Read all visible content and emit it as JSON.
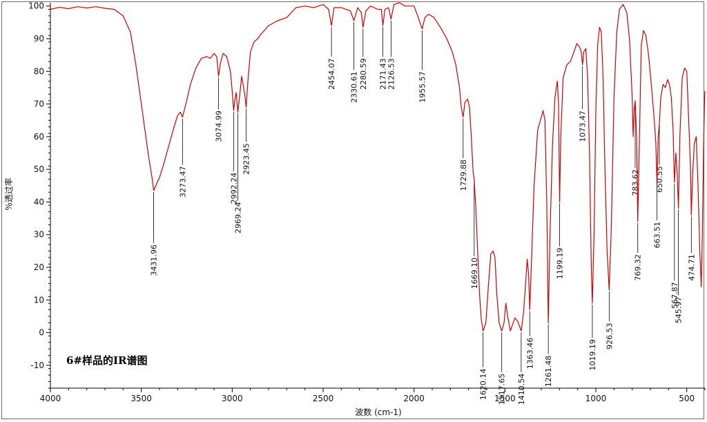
{
  "chart_data": {
    "type": "line",
    "title": "6#样品的IR谱图",
    "xlabel": "波数 (cm-1)",
    "ylabel": "%透过率",
    "xlim": [
      4000,
      400
    ],
    "ylim": [
      -17,
      101
    ],
    "x_ticks": [
      4000,
      3500,
      3000,
      2500,
      2000,
      1500,
      1000,
      500
    ],
    "y_ticks": [
      -10,
      0,
      10,
      20,
      30,
      40,
      50,
      60,
      70,
      80,
      90,
      100
    ],
    "grid": false,
    "line_color": "#cc0000",
    "series": [
      {
        "points": [
          [
            4000,
            99.0
          ],
          [
            3950,
            99.6
          ],
          [
            3900,
            99.2
          ],
          [
            3850,
            99.8
          ],
          [
            3800,
            99.4
          ],
          [
            3750,
            99.8
          ],
          [
            3700,
            99.3
          ],
          [
            3650,
            99.0
          ],
          [
            3600,
            97.0
          ],
          [
            3560,
            92.0
          ],
          [
            3530,
            82.0
          ],
          [
            3500,
            70.0
          ],
          [
            3480,
            62.0
          ],
          [
            3460,
            54.0
          ],
          [
            3440,
            47.0
          ],
          [
            3431.96,
            43.5
          ],
          [
            3420,
            45.0
          ],
          [
            3400,
            47.5
          ],
          [
            3380,
            51.0
          ],
          [
            3350,
            57.0
          ],
          [
            3320,
            63.0
          ],
          [
            3300,
            66.5
          ],
          [
            3285,
            67.5
          ],
          [
            3273.47,
            66.0
          ],
          [
            3255,
            70.0
          ],
          [
            3230,
            76.0
          ],
          [
            3200,
            81.0
          ],
          [
            3170,
            84.0
          ],
          [
            3140,
            84.5
          ],
          [
            3120,
            84.0
          ],
          [
            3100,
            85.5
          ],
          [
            3085,
            84.5
          ],
          [
            3074.99,
            78.5
          ],
          [
            3065,
            82.5
          ],
          [
            3050,
            85.5
          ],
          [
            3030,
            84.5
          ],
          [
            3010,
            80.0
          ],
          [
            3000,
            74.0
          ],
          [
            2992.24,
            68.0
          ],
          [
            2985,
            71.5
          ],
          [
            2978,
            73.5
          ],
          [
            2969.24,
            67.5
          ],
          [
            2960,
            72.0
          ],
          [
            2948,
            78.5
          ],
          [
            2940,
            76.0
          ],
          [
            2930,
            72.5
          ],
          [
            2923.45,
            69.0
          ],
          [
            2915,
            76.0
          ],
          [
            2900,
            86.0
          ],
          [
            2880,
            89.0
          ],
          [
            2860,
            90.0
          ],
          [
            2840,
            91.5
          ],
          [
            2800,
            94.0
          ],
          [
            2750,
            95.5
          ],
          [
            2700,
            96.5
          ],
          [
            2650,
            99.5
          ],
          [
            2600,
            100.0
          ],
          [
            2550,
            99.5
          ],
          [
            2500,
            100.5
          ],
          [
            2470,
            99.0
          ],
          [
            2454.07,
            94.0
          ],
          [
            2440,
            99.5
          ],
          [
            2400,
            99.5
          ],
          [
            2350,
            98.5
          ],
          [
            2330.61,
            95.5
          ],
          [
            2310,
            99.5
          ],
          [
            2290,
            98.0
          ],
          [
            2280.59,
            93.5
          ],
          [
            2265,
            98.5
          ],
          [
            2240,
            100.0
          ],
          [
            2200,
            99.0
          ],
          [
            2180,
            99.0
          ],
          [
            2171.43,
            94.0
          ],
          [
            2160,
            99.0
          ],
          [
            2140,
            99.5
          ],
          [
            2126.53,
            96.0
          ],
          [
            2110,
            100.5
          ],
          [
            2080,
            101.0
          ],
          [
            2050,
            100.0
          ],
          [
            2020,
            100.0
          ],
          [
            2000,
            100.0
          ],
          [
            1980,
            97.0
          ],
          [
            1955.57,
            93.0
          ],
          [
            1940,
            96.5
          ],
          [
            1920,
            97.5
          ],
          [
            1890,
            96.5
          ],
          [
            1850,
            93.0
          ],
          [
            1820,
            90.0
          ],
          [
            1790,
            86.0
          ],
          [
            1770,
            82.0
          ],
          [
            1750,
            75.0
          ],
          [
            1740,
            69.0
          ],
          [
            1729.88,
            66.0
          ],
          [
            1720,
            70.5
          ],
          [
            1705,
            71.5
          ],
          [
            1695,
            69.0
          ],
          [
            1685,
            60.0
          ],
          [
            1675,
            49.0
          ],
          [
            1669.1,
            47.0
          ],
          [
            1660,
            38.0
          ],
          [
            1650,
            25.0
          ],
          [
            1640,
            12.0
          ],
          [
            1630,
            4.0
          ],
          [
            1620.14,
            0.5
          ],
          [
            1605,
            3.0
          ],
          [
            1590,
            15.0
          ],
          [
            1578,
            24.0
          ],
          [
            1565,
            25.0
          ],
          [
            1555,
            23.0
          ],
          [
            1545,
            12.0
          ],
          [
            1532,
            3.0
          ],
          [
            1517.65,
            0.5
          ],
          [
            1505,
            3.0
          ],
          [
            1495,
            9.0
          ],
          [
            1485,
            5.0
          ],
          [
            1470,
            0.5
          ],
          [
            1455,
            3.0
          ],
          [
            1445,
            4.5
          ],
          [
            1430,
            3.5
          ],
          [
            1420,
            2.0
          ],
          [
            1410.54,
            0.5
          ],
          [
            1398,
            6.0
          ],
          [
            1385,
            16.0
          ],
          [
            1378,
            22.5
          ],
          [
            1370,
            18.0
          ],
          [
            1363.46,
            7.0
          ],
          [
            1355,
            20.0
          ],
          [
            1340,
            45.0
          ],
          [
            1320,
            62.0
          ],
          [
            1300,
            66.0
          ],
          [
            1290,
            68.0
          ],
          [
            1280,
            65.0
          ],
          [
            1270,
            40.0
          ],
          [
            1261.48,
            3.0
          ],
          [
            1252,
            30.0
          ],
          [
            1238,
            58.0
          ],
          [
            1225,
            72.0
          ],
          [
            1212,
            77.0
          ],
          [
            1205,
            70.0
          ],
          [
            1199.19,
            40.0
          ],
          [
            1193,
            60.0
          ],
          [
            1180,
            78.0
          ],
          [
            1160,
            82.0
          ],
          [
            1140,
            83.0
          ],
          [
            1120,
            86.0
          ],
          [
            1105,
            88.5
          ],
          [
            1090,
            87.5
          ],
          [
            1080,
            86.0
          ],
          [
            1073.47,
            82.0
          ],
          [
            1066,
            86.0
          ],
          [
            1055,
            87.0
          ],
          [
            1045,
            78.0
          ],
          [
            1035,
            55.0
          ],
          [
            1025,
            20.0
          ],
          [
            1019.19,
            9.0
          ],
          [
            1010,
            30.0
          ],
          [
            1000,
            68.0
          ],
          [
            990,
            88.0
          ],
          [
            980,
            93.5
          ],
          [
            970,
            92.0
          ],
          [
            960,
            78.0
          ],
          [
            950,
            50.0
          ],
          [
            938,
            25.0
          ],
          [
            926.53,
            13.0
          ],
          [
            915,
            32.0
          ],
          [
            900,
            72.0
          ],
          [
            885,
            92.0
          ],
          [
            870,
            99.0
          ],
          [
            850,
            100.5
          ],
          [
            830,
            98.0
          ],
          [
            815,
            90.0
          ],
          [
            800,
            72.0
          ],
          [
            795,
            60.0
          ],
          [
            790,
            68.0
          ],
          [
            783.62,
            71.0
          ],
          [
            776,
            60.0
          ],
          [
            769.32,
            34.0
          ],
          [
            760,
            60.0
          ],
          [
            750,
            88.0
          ],
          [
            738,
            92.5
          ],
          [
            725,
            91.0
          ],
          [
            710,
            85.0
          ],
          [
            695,
            76.0
          ],
          [
            680,
            66.0
          ],
          [
            670,
            58.0
          ],
          [
            663.51,
            45.0
          ],
          [
            657,
            60.0
          ],
          [
            650.55,
            64.0
          ],
          [
            643,
            72.0
          ],
          [
            630,
            76.0
          ],
          [
            618,
            75.0
          ],
          [
            605,
            77.5
          ],
          [
            595,
            76.0
          ],
          [
            585,
            72.0
          ],
          [
            575,
            62.0
          ],
          [
            567.87,
            46.0
          ],
          [
            560,
            55.0
          ],
          [
            552,
            48.0
          ],
          [
            545.97,
            38.0
          ],
          [
            538,
            60.0
          ],
          [
            525,
            78.0
          ],
          [
            512,
            81.0
          ],
          [
            500,
            80.0
          ],
          [
            490,
            66.0
          ],
          [
            480,
            52.0
          ],
          [
            474.71,
            36.0
          ],
          [
            468,
            48.0
          ],
          [
            458,
            58.0
          ],
          [
            448,
            60.0
          ],
          [
            438,
            45.0
          ],
          [
            428,
            25.0
          ],
          [
            420,
            14.0
          ],
          [
            414,
            30.0
          ],
          [
            408,
            55.0
          ],
          [
            402,
            72.0
          ],
          [
            400,
            74.0
          ]
        ]
      }
    ],
    "annotations": [
      {
        "label": "3431.96",
        "x": 3431.96,
        "y": 43.5,
        "label_y": 27.0
      },
      {
        "label": "3273.47",
        "x": 3273.47,
        "y": 66.0,
        "label_y": 51.0
      },
      {
        "label": "3074.99",
        "x": 3074.99,
        "y": 78.5,
        "label_y": 68.0
      },
      {
        "label": "2992.24",
        "x": 2992.24,
        "y": 68.0,
        "label_y": 49.0
      },
      {
        "label": "2969.24",
        "x": 2969.24,
        "y": 67.5,
        "label_y": 40.0
      },
      {
        "label": "2923.45",
        "x": 2923.45,
        "y": 69.0,
        "label_y": 58.0
      },
      {
        "label": "2454.07",
        "x": 2454.07,
        "y": 94.0,
        "label_y": 84.0
      },
      {
        "label": "2330.61",
        "x": 2330.61,
        "y": 95.5,
        "label_y": 80.0
      },
      {
        "label": "2280.59",
        "x": 2280.59,
        "y": 93.5,
        "label_y": 84.0
      },
      {
        "label": "2171.43",
        "x": 2171.43,
        "y": 94.0,
        "label_y": 84.0
      },
      {
        "label": "2126.53",
        "x": 2126.53,
        "y": 96.0,
        "label_y": 84.0
      },
      {
        "label": "1955.57",
        "x": 1955.57,
        "y": 93.0,
        "label_y": 80.0
      },
      {
        "label": "1729.88",
        "x": 1729.88,
        "y": 66.0,
        "label_y": 53.0
      },
      {
        "label": "1669.10",
        "x": 1669.1,
        "y": 47.0,
        "label_y": 23.0
      },
      {
        "label": "1620.14",
        "x": 1620.14,
        "y": 0.5,
        "label_y": -11.0
      },
      {
        "label": "1517.65",
        "x": 1517.65,
        "y": 0.5,
        "label_y": -12.5
      },
      {
        "label": "1410.54",
        "x": 1410.54,
        "y": 0.5,
        "label_y": -12.5
      },
      {
        "label": "1363.46",
        "x": 1363.46,
        "y": 7.0,
        "label_y": -1.5
      },
      {
        "label": "1261.48",
        "x": 1261.48,
        "y": 3.0,
        "label_y": -7.0
      },
      {
        "label": "1199.19",
        "x": 1199.19,
        "y": 40.0,
        "label_y": 26.0
      },
      {
        "label": "1073.47",
        "x": 1073.47,
        "y": 82.0,
        "label_y": 68.0
      },
      {
        "label": "1019.19",
        "x": 1019.19,
        "y": 9.0,
        "label_y": -2.0
      },
      {
        "label": "926.53",
        "x": 926.53,
        "y": 13.0,
        "label_y": 3.0
      },
      {
        "label": "783.62",
        "x": 783.62,
        "y": 71.0,
        "label_y": 50.0
      },
      {
        "label": "769.32",
        "x": 769.32,
        "y": 34.0,
        "label_y": 24.0
      },
      {
        "label": "663.51",
        "x": 663.51,
        "y": 45.0,
        "label_y": 34.0
      },
      {
        "label": "650.55",
        "x": 650.55,
        "y": 64.0,
        "label_y": 51.0
      },
      {
        "label": "567.87",
        "x": 567.87,
        "y": 46.0,
        "label_y": 15.5
      },
      {
        "label": "545.97",
        "x": 545.97,
        "y": 38.0,
        "label_y": 11.0
      },
      {
        "label": "474.71",
        "x": 474.71,
        "y": 36.0,
        "label_y": 24.0
      }
    ]
  }
}
